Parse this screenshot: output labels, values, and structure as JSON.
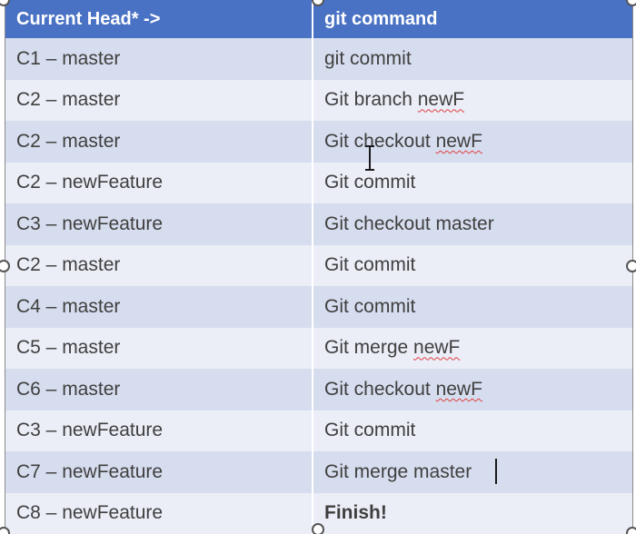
{
  "table": {
    "headers": [
      "Current Head* ->",
      "git command"
    ],
    "rows": [
      {
        "head": "C1 – master",
        "command": "git commit"
      },
      {
        "head": "C2 – master",
        "command_prefix": "Git branch ",
        "command_flagged": "newF"
      },
      {
        "head": "C2 – master",
        "command_prefix": "Git checkout ",
        "command_flagged": "newF"
      },
      {
        "head": "C2 – newFeature",
        "command": "Git commit"
      },
      {
        "head": "C3 – newFeature",
        "command": "Git checkout master"
      },
      {
        "head": "C2 – master",
        "command": "Git commit"
      },
      {
        "head": "C4 – master",
        "command": "Git commit"
      },
      {
        "head": "C5 – master",
        "command_prefix": "Git merge ",
        "command_flagged": "newF"
      },
      {
        "head": "C6 – master",
        "command_prefix": "Git checkout ",
        "command_flagged": "newF"
      },
      {
        "head": "C3 – newFeature",
        "command": "Git commit"
      },
      {
        "head": "C7 – newFeature",
        "command": "Git merge master"
      },
      {
        "head": "C8 – newFeature",
        "command": "Finish!"
      }
    ]
  },
  "colors": {
    "header_bg": "#4a72c4",
    "row_dark": "#d6ddee",
    "row_light": "#ebeef7",
    "spellcheck": "#e04040"
  },
  "icons": {
    "cursor": "i-beam-cursor-icon",
    "handle": "resize-handle-icon"
  }
}
